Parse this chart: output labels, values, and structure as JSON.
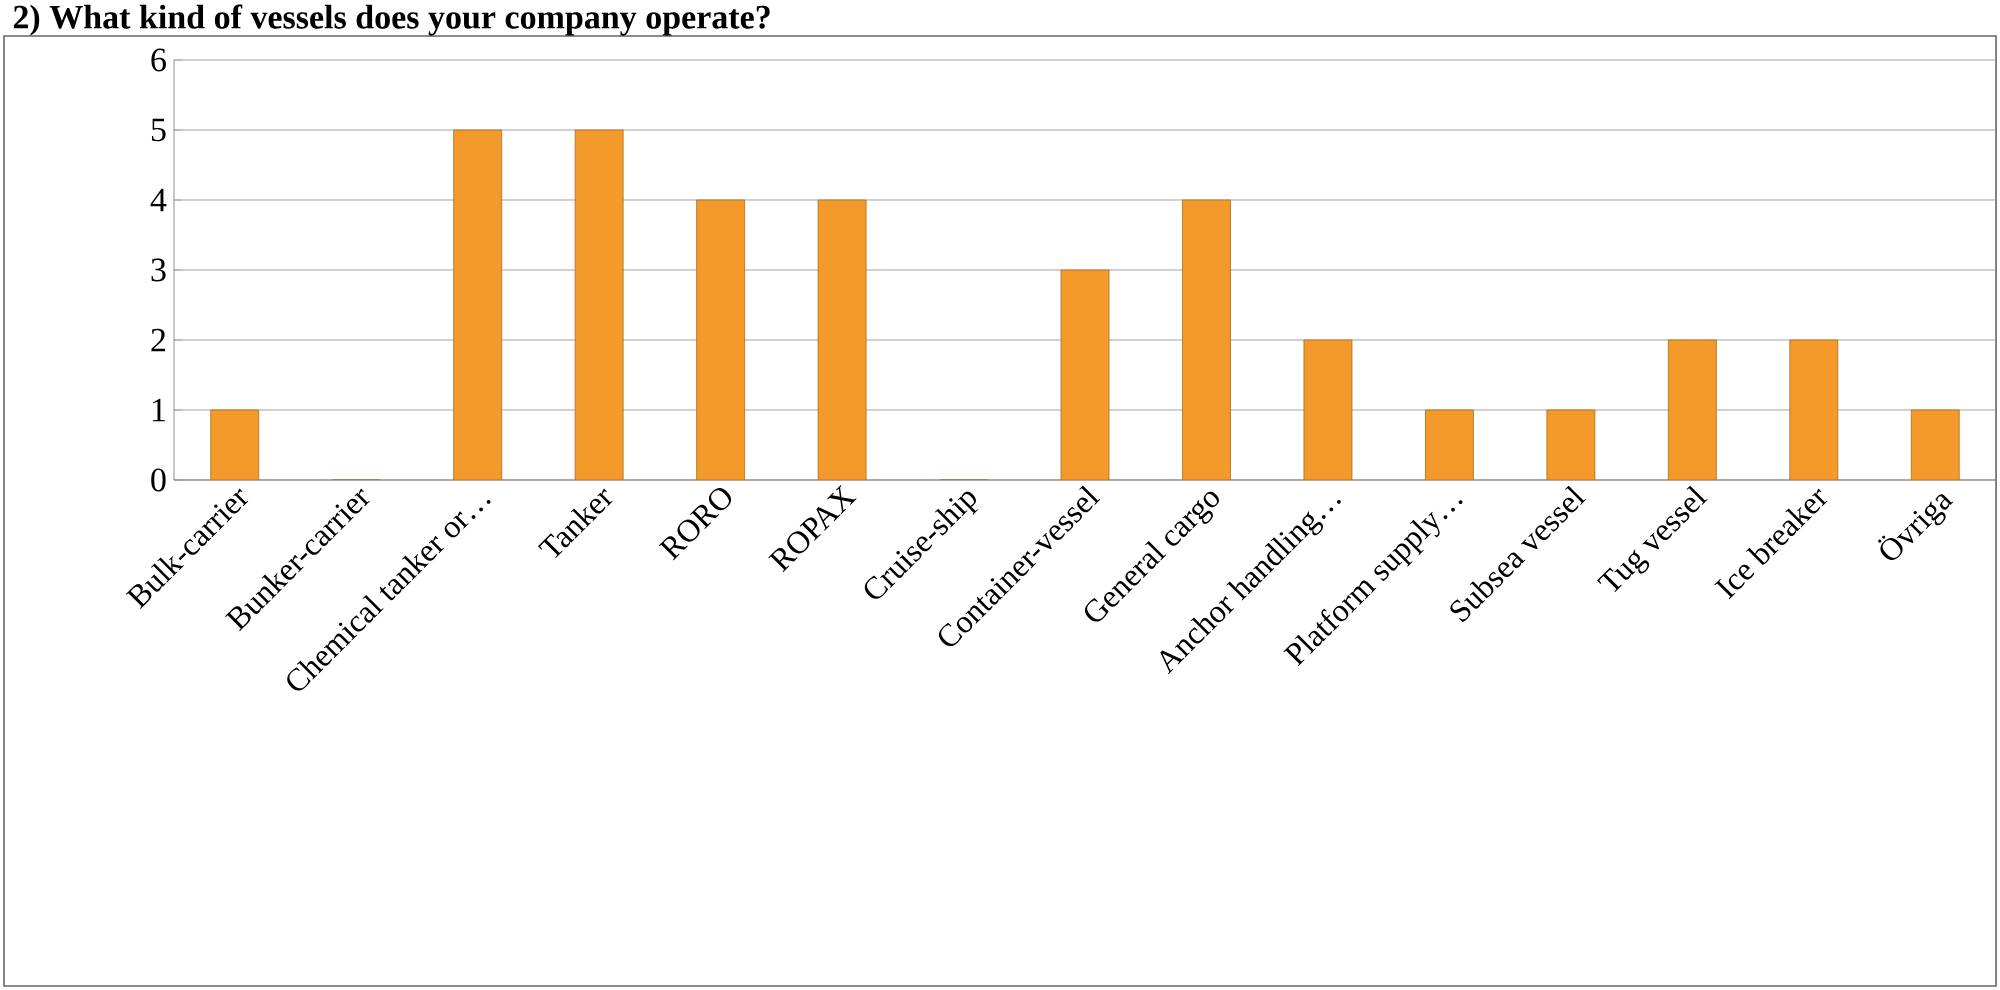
{
  "chart_data": {
    "type": "bar",
    "title": "2) What kind of vessels does your company operate?",
    "categories": [
      "Bulk-carrier",
      "Bunker-carrier",
      "Chemical tanker or…",
      "Tanker",
      "RORO",
      "ROPAX",
      "Cruise-ship",
      "Container-vessel",
      "General cargo",
      "Anchor handling…",
      "Platform supply…",
      "Subsea vessel",
      "Tug vessel",
      "Ice breaker",
      "Övriga"
    ],
    "values": [
      1,
      0,
      5,
      5,
      4,
      4,
      0,
      3,
      4,
      2,
      1,
      1,
      2,
      2,
      1
    ],
    "color": "#f39a2b",
    "ylim": [
      0,
      6
    ],
    "yticks": [
      0,
      1,
      2,
      3,
      4,
      5,
      6
    ],
    "grid": "y"
  }
}
